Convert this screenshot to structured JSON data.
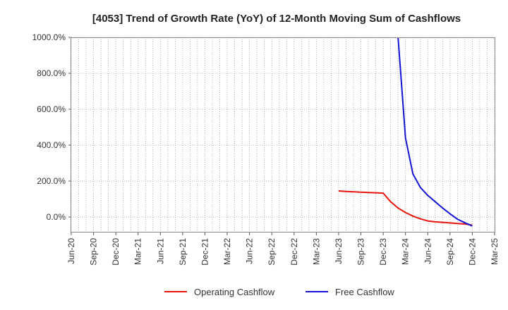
{
  "chart_data": {
    "type": "line",
    "title": "[4053]  Trend of Growth Rate (YoY) of 12-Month Moving Sum of Cashflows",
    "xlabel": "",
    "ylabel": "",
    "ylim": [
      -90,
      1000
    ],
    "y_ticks": [
      0,
      200,
      400,
      600,
      800,
      1000
    ],
    "y_tick_labels": [
      "0.0%",
      "200.0%",
      "400.0%",
      "600.0%",
      "800.0%",
      "1000.0%"
    ],
    "x_ticks": [
      "2020-06",
      "2020-09",
      "2020-12",
      "2021-03",
      "2021-06",
      "2021-09",
      "2021-12",
      "2022-03",
      "2022-06",
      "2022-09",
      "2022-12",
      "2023-03",
      "2023-06",
      "2023-09",
      "2023-12",
      "2024-03",
      "2024-06",
      "2024-09",
      "2024-12",
      "2025-03"
    ],
    "x_tick_labels": [
      "Jun-20",
      "Sep-20",
      "Dec-20",
      "Mar-21",
      "Jun-21",
      "Sep-21",
      "Dec-21",
      "Mar-22",
      "Jun-22",
      "Sep-22",
      "Dec-22",
      "Mar-23",
      "Jun-23",
      "Sep-23",
      "Dec-23",
      "Mar-24",
      "Jun-24",
      "Sep-24",
      "Dec-24",
      "Mar-25"
    ],
    "grid": true,
    "legend_position": "bottom",
    "series": [
      {
        "name": "Operating Cashflow",
        "color": "#e8140c",
        "x": [
          "2023-06",
          "2023-07",
          "2023-08",
          "2023-09",
          "2023-10",
          "2023-11",
          "2023-12",
          "2024-01",
          "2024-02",
          "2024-03",
          "2024-04",
          "2024-05",
          "2024-06",
          "2024-07",
          "2024-08",
          "2024-09",
          "2024-10",
          "2024-11",
          "2024-12"
        ],
        "values": [
          145,
          142,
          140,
          138,
          136,
          135,
          133,
          85,
          50,
          25,
          5,
          -10,
          -22,
          -27,
          -30,
          -33,
          -36,
          -39,
          -45
        ]
      },
      {
        "name": "Free Cashflow",
        "color": "#1414d2",
        "x": [
          "2024-02",
          "2024-03",
          "2024-04",
          "2024-05",
          "2024-06",
          "2024-07",
          "2024-08",
          "2024-09",
          "2024-10",
          "2024-11",
          "2024-12"
        ],
        "values": [
          1000,
          440,
          240,
          165,
          120,
          85,
          50,
          18,
          -12,
          -32,
          -50
        ]
      }
    ]
  }
}
